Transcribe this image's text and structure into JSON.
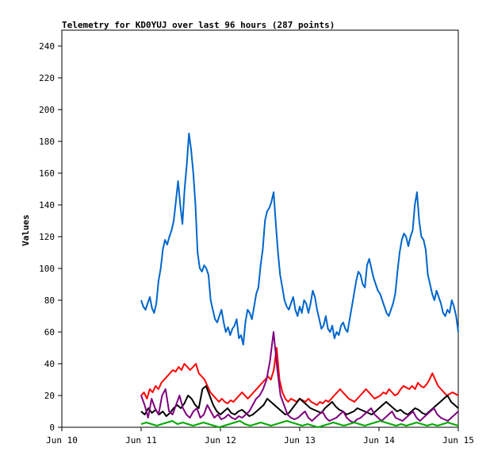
{
  "chart_data": {
    "type": "line",
    "title": "Telemetry for KD0YUJ over last 96 hours (287 points)",
    "ylabel": "Values",
    "xlabel": "",
    "ylim": [
      0,
      250
    ],
    "yticks": [
      0,
      20,
      40,
      60,
      80,
      100,
      120,
      140,
      160,
      180,
      200,
      220,
      240
    ],
    "xlim": [
      "2023-06-10",
      "2023-06-15"
    ],
    "x_tick_labels": [
      "Jun 10",
      "Jun 11",
      "Jun 12",
      "Jun 13",
      "Jun 14",
      "Jun 15"
    ],
    "grid": false,
    "legend": "none",
    "series": [
      {
        "color": "#0066cc",
        "x_start": "2023-06-11 00:00",
        "x_end": "2023-06-15 00:00",
        "values": [
          80,
          76,
          74,
          78,
          82,
          75,
          72,
          78,
          92,
          100,
          112,
          118,
          115,
          120,
          124,
          130,
          142,
          155,
          140,
          128,
          150,
          165,
          185,
          175,
          160,
          140,
          110,
          100,
          98,
          102,
          100,
          96,
          80,
          74,
          68,
          66,
          70,
          74,
          66,
          60,
          63,
          58,
          62,
          64,
          68,
          56,
          58,
          52,
          66,
          74,
          72,
          68,
          76,
          84,
          88,
          102,
          112,
          130,
          136,
          138,
          142,
          148,
          128,
          110,
          96,
          88,
          80,
          76,
          74,
          78,
          82,
          74,
          70,
          76,
          72,
          80,
          78,
          72,
          78,
          86,
          82,
          74,
          68,
          62,
          64,
          70,
          62,
          60,
          64,
          56,
          60,
          58,
          64,
          66,
          62,
          60,
          68,
          76,
          84,
          92,
          98,
          96,
          90,
          88,
          102,
          106,
          100,
          94,
          90,
          86,
          84,
          80,
          76,
          72,
          70,
          74,
          78,
          84,
          98,
          110,
          118,
          122,
          120,
          114,
          120,
          124,
          140,
          148,
          130,
          120,
          118,
          112,
          96,
          90,
          84,
          80,
          86,
          82,
          78,
          72,
          70,
          74,
          72,
          80,
          76,
          70,
          60
        ]
      },
      {
        "color": "#ff0000",
        "x_start": "2023-06-11 00:00",
        "x_end": "2023-06-15 00:00",
        "values": [
          20,
          22,
          18,
          24,
          22,
          26,
          24,
          28,
          30,
          32,
          34,
          36,
          35,
          38,
          36,
          40,
          38,
          36,
          38,
          40,
          34,
          32,
          30,
          26,
          22,
          20,
          18,
          16,
          18,
          16,
          15,
          17,
          16,
          18,
          20,
          22,
          20,
          18,
          20,
          22,
          24,
          26,
          28,
          30,
          32,
          30,
          36,
          50,
          30,
          22,
          18,
          16,
          18,
          17,
          16,
          18,
          17,
          16,
          18,
          16,
          15,
          14,
          16,
          15,
          17,
          16,
          18,
          20,
          22,
          24,
          22,
          20,
          18,
          17,
          16,
          18,
          20,
          22,
          24,
          22,
          20,
          18,
          19,
          20,
          22,
          21,
          24,
          22,
          20,
          21,
          24,
          26,
          25,
          24,
          26,
          24,
          28,
          26,
          25,
          27,
          30,
          34,
          30,
          26,
          24,
          22,
          20,
          21,
          22,
          21,
          20
        ]
      },
      {
        "color": "#000000",
        "x_start": "2023-06-11 00:00",
        "x_end": "2023-06-15 00:00",
        "values": [
          10,
          8,
          12,
          9,
          11,
          8,
          10,
          7,
          9,
          12,
          14,
          12,
          15,
          20,
          18,
          14,
          12,
          24,
          26,
          20,
          14,
          10,
          8,
          10,
          12,
          9,
          8,
          10,
          11,
          9,
          7,
          8,
          10,
          12,
          14,
          18,
          16,
          14,
          12,
          10,
          8,
          9,
          12,
          15,
          18,
          16,
          14,
          12,
          11,
          10,
          9,
          12,
          14,
          16,
          13,
          11,
          10,
          8,
          9,
          10,
          12,
          11,
          10,
          9,
          8,
          10,
          12,
          14,
          16,
          14,
          12,
          10,
          11,
          9,
          8,
          10,
          12,
          11,
          9,
          8,
          10,
          12,
          14,
          16,
          18,
          20,
          16,
          14,
          12
        ]
      },
      {
        "color": "#800080",
        "x_start": "2023-06-11 00:00",
        "x_end": "2023-06-15 00:00",
        "values": [
          20,
          14,
          6,
          18,
          12,
          8,
          20,
          24,
          10,
          8,
          14,
          20,
          12,
          8,
          6,
          10,
          12,
          6,
          8,
          14,
          10,
          6,
          8,
          5,
          6,
          8,
          6,
          5,
          7,
          6,
          8,
          10,
          14,
          18,
          20,
          24,
          30,
          42,
          60,
          38,
          20,
          14,
          8,
          6,
          5,
          6,
          8,
          10,
          6,
          4,
          6,
          8,
          10,
          6,
          4,
          5,
          6,
          8,
          10,
          6,
          4,
          3,
          5,
          6,
          8,
          10,
          12,
          8,
          6,
          4,
          6,
          8,
          10,
          6,
          5,
          4,
          6,
          8,
          10,
          6,
          4,
          6,
          8,
          10,
          12,
          8,
          6,
          5,
          4,
          6,
          8,
          10
        ]
      },
      {
        "color": "#00aa00",
        "x_start": "2023-06-11 00:00",
        "x_end": "2023-06-15 00:00",
        "values": [
          2,
          3,
          2,
          1,
          2,
          3,
          4,
          2,
          3,
          2,
          1,
          2,
          3,
          2,
          1,
          0,
          1,
          2,
          3,
          4,
          2,
          1,
          2,
          3,
          2,
          1,
          2,
          3,
          4,
          3,
          2,
          1,
          2,
          1,
          0,
          1,
          2,
          3,
          2,
          1,
          2,
          3,
          2,
          1,
          2,
          3,
          4,
          3,
          2,
          1,
          2,
          1,
          2,
          3,
          2,
          1,
          2,
          1,
          2,
          3,
          2,
          1
        ]
      }
    ]
  }
}
